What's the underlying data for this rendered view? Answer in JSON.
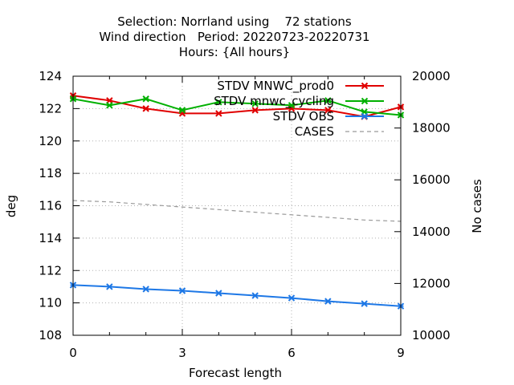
{
  "chart_data": {
    "type": "line",
    "title_lines": [
      "Selection: Norrland using    72 stations",
      "Wind direction   Period: 20220723-20220731",
      "Hours: {All hours}"
    ],
    "xlabel": "Forecast length",
    "ylabel": "deg",
    "y2label": "No cases",
    "xlim": [
      0,
      9
    ],
    "ylim": [
      108,
      124
    ],
    "y2lim": [
      10000,
      20000
    ],
    "xticks": [
      0,
      3,
      6,
      9
    ],
    "yticks": [
      108,
      110,
      112,
      114,
      116,
      118,
      120,
      122,
      124
    ],
    "y2ticks": [
      10000,
      12000,
      14000,
      16000,
      18000,
      20000
    ],
    "grid": true,
    "legend_position": "top-right",
    "x": [
      0,
      1,
      2,
      3,
      4,
      5,
      6,
      7,
      8,
      9
    ],
    "series": [
      {
        "name": "STDV MNWC_prod0",
        "color": "#e00000",
        "marker": "x",
        "axis": "y",
        "values": [
          122.8,
          122.5,
          122.0,
          121.7,
          121.7,
          121.9,
          122.0,
          121.9,
          121.5,
          122.1
        ]
      },
      {
        "name": "STDV mnwc_cycling",
        "color": "#00b000",
        "marker": "x",
        "axis": "y",
        "values": [
          122.6,
          122.2,
          122.6,
          121.9,
          122.4,
          122.3,
          122.2,
          122.5,
          121.8,
          121.6
        ]
      },
      {
        "name": "STDV OBS",
        "color": "#1e78e6",
        "marker": "x",
        "axis": "y",
        "values": [
          111.1,
          111.0,
          110.85,
          110.75,
          110.6,
          110.45,
          110.3,
          110.1,
          109.95,
          109.8
        ]
      },
      {
        "name": "CASES",
        "color": "#999999",
        "marker": "none",
        "dashed": true,
        "axis": "y2",
        "values": [
          15200,
          15150,
          15050,
          14950,
          14850,
          14750,
          14650,
          14550,
          14450,
          14400
        ]
      }
    ]
  }
}
